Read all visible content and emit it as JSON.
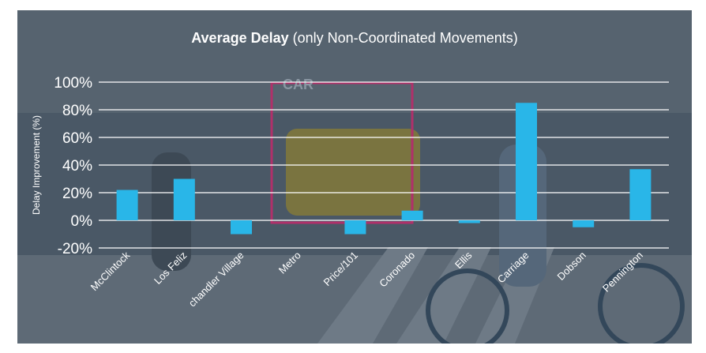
{
  "chart_data": {
    "type": "bar",
    "title_bold": "Average Delay",
    "title_rest": " (only Non-Coordinated Movements)",
    "ylabel": "Delay Improvement (%)",
    "xlabel": "",
    "ylim": [
      -20,
      100
    ],
    "yticks": [
      -20,
      0,
      20,
      40,
      60,
      80,
      100
    ],
    "ytick_labels": [
      "-20%",
      "0%",
      "20%",
      "40%",
      "60%",
      "80%",
      "100%"
    ],
    "grid": true,
    "bar_color": "#29b6e8",
    "categories": [
      "McClintock",
      "Los Feliz",
      "chandler Village",
      "Metro",
      "Price/101",
      "Coronado",
      "Ellis",
      "Carriage",
      "Dobson",
      "Pennington"
    ],
    "values": [
      22,
      30,
      -10,
      0,
      -10,
      7,
      -2,
      85,
      -5,
      37
    ]
  },
  "background": {
    "photo_label": "CAR",
    "accent_box_color": "#b0306a"
  }
}
